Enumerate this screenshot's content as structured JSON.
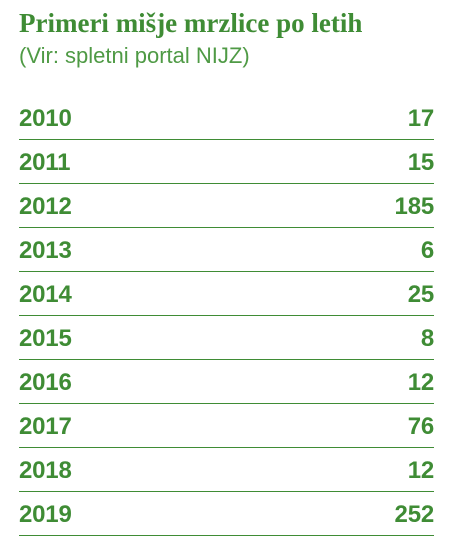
{
  "header": {
    "title": "Primeri mišje mrzlice po letih",
    "subtitle": "(Vir: spletni portal NIJZ)"
  },
  "table": {
    "rows": [
      {
        "year": "2010",
        "cases": "17"
      },
      {
        "year": "2011",
        "cases": "15"
      },
      {
        "year": "2012",
        "cases": "185"
      },
      {
        "year": "2013",
        "cases": "6"
      },
      {
        "year": "2014",
        "cases": "25"
      },
      {
        "year": "2015",
        "cases": "8"
      },
      {
        "year": "2016",
        "cases": "12"
      },
      {
        "year": "2017",
        "cases": "76"
      },
      {
        "year": "2018",
        "cases": "12"
      },
      {
        "year": "2019",
        "cases": "252"
      }
    ]
  },
  "colors": {
    "accent_green": "#3f8c35",
    "background": "#ffffff"
  }
}
